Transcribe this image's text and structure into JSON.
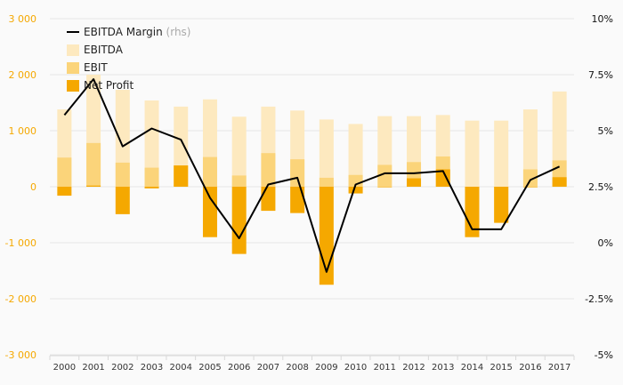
{
  "chart_data": {
    "type": "bar",
    "categories": [
      "2000",
      "2001",
      "2002",
      "2003",
      "2004",
      "2005",
      "2006",
      "2007",
      "2008",
      "2009",
      "2010",
      "2011",
      "2012",
      "2013",
      "2014",
      "2015",
      "2016",
      "2017"
    ],
    "series": [
      {
        "name": "EBITDA",
        "kind": "bar",
        "axis": "left",
        "color": "#fde9bf",
        "values": [
          1380,
          2000,
          1730,
          1540,
          1430,
          1560,
          1250,
          1430,
          1360,
          1200,
          1120,
          1260,
          1260,
          1280,
          1180,
          1180,
          1380,
          1700
        ]
      },
      {
        "name": "EBIT",
        "kind": "bar",
        "axis": "left",
        "color": "#fbd47a",
        "values": [
          520,
          780,
          430,
          340,
          380,
          530,
          200,
          600,
          490,
          160,
          210,
          390,
          440,
          540,
          -640,
          -650,
          310,
          470
        ]
      },
      {
        "name": "Net Profit",
        "kind": "bar",
        "axis": "left",
        "color": "#f5a800",
        "values": [
          -160,
          20,
          -490,
          -30,
          380,
          -900,
          -1200,
          -430,
          -470,
          -1750,
          -120,
          -10,
          150,
          310,
          -900,
          -640,
          -10,
          170
        ]
      },
      {
        "name": "EBITDA Margin",
        "suffix": "(rhs)",
        "kind": "line",
        "axis": "right",
        "color": "#000000",
        "values": [
          5.7,
          7.3,
          4.3,
          5.1,
          4.6,
          2.0,
          0.2,
          2.6,
          2.9,
          -1.3,
          2.6,
          3.1,
          3.1,
          3.2,
          0.6,
          0.6,
          2.8,
          3.4
        ]
      }
    ],
    "left_axis": {
      "ylim": [
        -3000,
        3000
      ],
      "ticks": [
        -3000,
        -2000,
        -1000,
        0,
        1000,
        2000,
        3000
      ],
      "tick_labels": [
        "-3 000",
        "-2 000",
        "-1 000",
        "0",
        "1 000",
        "2 000",
        "3 000"
      ]
    },
    "right_axis": {
      "ylim": [
        -5,
        10
      ],
      "ticks": [
        -5,
        -2.5,
        0,
        2.5,
        5,
        7.5,
        10
      ],
      "tick_labels": [
        "-5%",
        "-2.5%",
        "0%",
        "2.5%",
        "5%",
        "7.5%",
        "10%"
      ]
    },
    "legend": {
      "placement": "top-left",
      "order": [
        "EBITDA Margin",
        "EBITDA",
        "EBIT",
        "Net Profit"
      ]
    },
    "grid": "horizontal",
    "title": "",
    "xlabel": "",
    "ylabel": ""
  }
}
